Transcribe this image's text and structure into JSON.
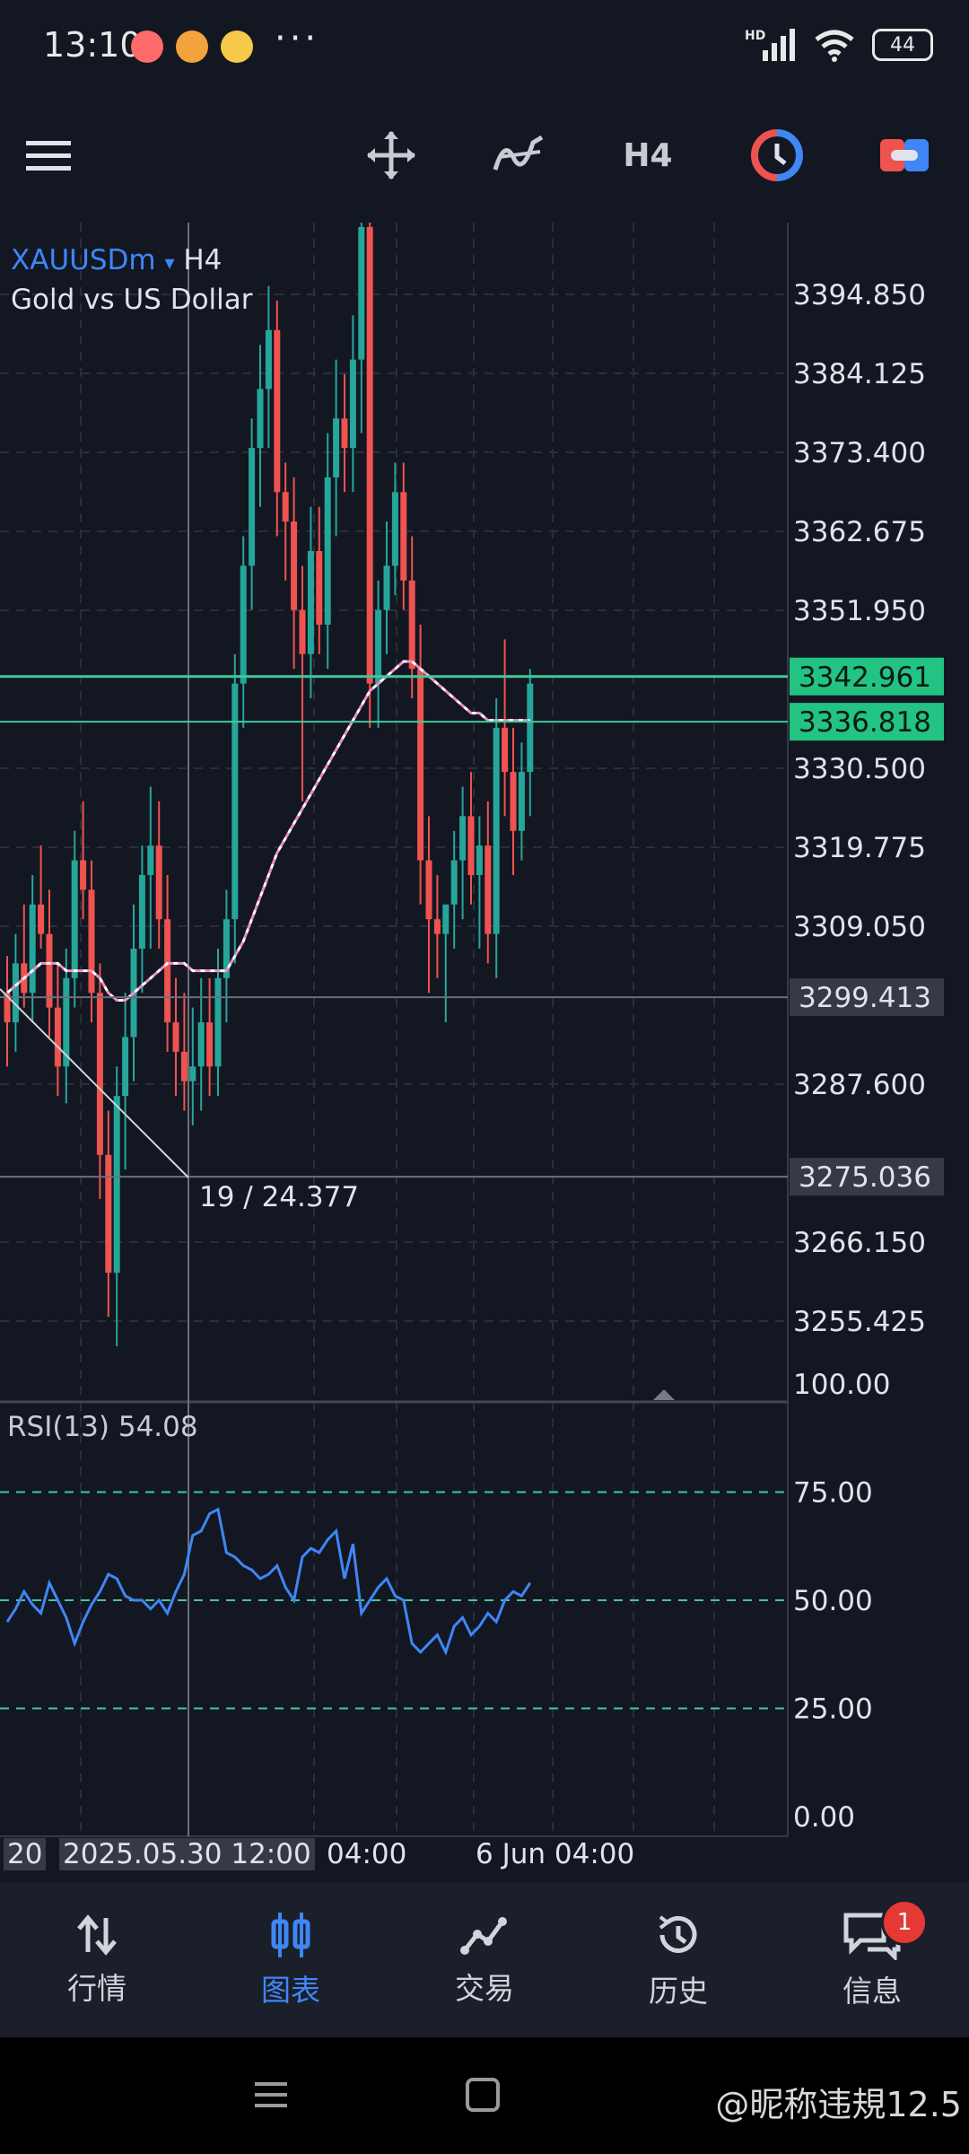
{
  "status_bar": {
    "time": "13:10",
    "more": "···",
    "hd": "HD",
    "battery": "44",
    "notification_icons": [
      "music-app-icon",
      "shopping-app-icon",
      "weibo-app-icon"
    ]
  },
  "toolbar": {
    "menu_icon": "hamburger-icon",
    "crosshair_icon": "move-crosshair-icon",
    "indicators_icon": "indicators-icon",
    "timeframe": "H4",
    "trade_icon": "one-click-trade-icon",
    "account_icon": "account-toggle-icon"
  },
  "chart": {
    "symbol": "XAUUSDm",
    "symbol_dropdown": "▾",
    "timeframe": "H4",
    "description": "Gold vs US Dollar",
    "measure_text": "19 / 24.377",
    "colors": {
      "background": "#131722",
      "up": "#26a69a",
      "down": "#ef5350",
      "ma": "#ffffff",
      "rsi": "#3f86f6",
      "level_line": "#3fc99a"
    }
  },
  "chart_data": {
    "type": "candlestick",
    "symbol": "XAUUSDm",
    "timeframe": "H4",
    "y_ticks": [
      3394.85,
      3384.125,
      3373.4,
      3362.675,
      3351.95,
      3330.5,
      3319.775,
      3309.05,
      3287.6,
      3266.15,
      3255.425
    ],
    "price_tags": {
      "current_bid": 3342.961,
      "level_2": 3336.818,
      "crosshair": 3299.413,
      "measure_line": 3275.036
    },
    "x_tick_labels": [
      "20",
      "2025.05.30 12:00",
      "04:00",
      "6 Jun 04:00"
    ],
    "candles_ohlc": [
      [
        3300,
        3305,
        3290,
        3296
      ],
      [
        3296,
        3308,
        3292,
        3304
      ],
      [
        3304,
        3312,
        3298,
        3300
      ],
      [
        3300,
        3316,
        3296,
        3312
      ],
      [
        3312,
        3320,
        3306,
        3308
      ],
      [
        3308,
        3314,
        3294,
        3298
      ],
      [
        3298,
        3304,
        3286,
        3290
      ],
      [
        3290,
        3306,
        3285,
        3302
      ],
      [
        3302,
        3322,
        3298,
        3318
      ],
      [
        3318,
        3326,
        3310,
        3314
      ],
      [
        3314,
        3318,
        3296,
        3300
      ],
      [
        3300,
        3304,
        3272,
        3278
      ],
      [
        3278,
        3284,
        3256,
        3262
      ],
      [
        3262,
        3290,
        3252,
        3286
      ],
      [
        3286,
        3300,
        3276,
        3294
      ],
      [
        3294,
        3312,
        3288,
        3306
      ],
      [
        3306,
        3320,
        3300,
        3316
      ],
      [
        3316,
        3328,
        3306,
        3320
      ],
      [
        3320,
        3326,
        3306,
        3310
      ],
      [
        3310,
        3316,
        3292,
        3296
      ],
      [
        3296,
        3302,
        3286,
        3292
      ],
      [
        3292,
        3300,
        3284,
        3288
      ],
      [
        3288,
        3298,
        3282,
        3290
      ],
      [
        3290,
        3302,
        3284,
        3296
      ],
      [
        3296,
        3302,
        3286,
        3290
      ],
      [
        3290,
        3306,
        3286,
        3302
      ],
      [
        3302,
        3314,
        3296,
        3310
      ],
      [
        3310,
        3346,
        3304,
        3342
      ],
      [
        3342,
        3362,
        3336,
        3358
      ],
      [
        3358,
        3378,
        3352,
        3374
      ],
      [
        3374,
        3388,
        3366,
        3382
      ],
      [
        3382,
        3396,
        3374,
        3390
      ],
      [
        3390,
        3394,
        3362,
        3368
      ],
      [
        3368,
        3372,
        3356,
        3364
      ],
      [
        3364,
        3370,
        3344,
        3352
      ],
      [
        3352,
        3358,
        3326,
        3346
      ],
      [
        3346,
        3366,
        3340,
        3360
      ],
      [
        3360,
        3366,
        3346,
        3350
      ],
      [
        3350,
        3376,
        3344,
        3370
      ],
      [
        3370,
        3386,
        3362,
        3378
      ],
      [
        3378,
        3384,
        3368,
        3374
      ],
      [
        3374,
        3392,
        3368,
        3386
      ],
      [
        3386,
        3408,
        3376,
        3404
      ],
      [
        3404,
        3410,
        3336,
        3342
      ],
      [
        3342,
        3356,
        3336,
        3352
      ],
      [
        3352,
        3364,
        3346,
        3358
      ],
      [
        3358,
        3372,
        3354,
        3368
      ],
      [
        3368,
        3372,
        3352,
        3356
      ],
      [
        3356,
        3362,
        3340,
        3344
      ],
      [
        3344,
        3350,
        3312,
        3318
      ],
      [
        3318,
        3324,
        3300,
        3310
      ],
      [
        3310,
        3316,
        3302,
        3308
      ],
      [
        3308,
        3312,
        3296,
        3312
      ],
      [
        3312,
        3322,
        3306,
        3318
      ],
      [
        3318,
        3328,
        3310,
        3324
      ],
      [
        3324,
        3330,
        3312,
        3316
      ],
      [
        3316,
        3324,
        3306,
        3320
      ],
      [
        3320,
        3326,
        3304,
        3308
      ],
      [
        3308,
        3340,
        3302,
        3336
      ],
      [
        3336,
        3348,
        3324,
        3330
      ],
      [
        3330,
        3336,
        3316,
        3322
      ],
      [
        3322,
        3334,
        3318,
        3330
      ],
      [
        3330,
        3344,
        3324,
        3342
      ]
    ],
    "moving_average": [
      3300,
      3301,
      3302,
      3303,
      3304,
      3304,
      3304,
      3303,
      3303,
      3303,
      3303,
      3302,
      3300,
      3299,
      3299,
      3300,
      3301,
      3302,
      3303,
      3304,
      3304,
      3304,
      3303,
      3303,
      3303,
      3303,
      3303,
      3305,
      3307,
      3310,
      3313,
      3316,
      3319,
      3321,
      3323,
      3325,
      3327,
      3329,
      3331,
      3333,
      3335,
      3337,
      3339,
      3341,
      3342,
      3343,
      3344,
      3345,
      3345,
      3344,
      3343,
      3342,
      3341,
      3340,
      3339,
      3338,
      3338,
      3337,
      3337,
      3337,
      3337,
      3337,
      3337
    ],
    "rsi": {
      "period": 13,
      "label": "RSI(13)",
      "current": 54.08,
      "y_ticks": [
        100.0,
        75.0,
        50.0,
        25.0,
        0.0
      ],
      "levels": [
        75,
        50,
        25
      ],
      "values": [
        45,
        48,
        52,
        49,
        47,
        54,
        50,
        46,
        40,
        45,
        49,
        52,
        56,
        55,
        51,
        50,
        50,
        48,
        50,
        47,
        52,
        56,
        65,
        66,
        70,
        71,
        61,
        60,
        58,
        57,
        55,
        56,
        58,
        53,
        50,
        60,
        62,
        61,
        64,
        66,
        55,
        63,
        47,
        50,
        53,
        55,
        51,
        50,
        40,
        38,
        40,
        42,
        38,
        44,
        46,
        42,
        44,
        47,
        45,
        50,
        52,
        51,
        54
      ]
    }
  },
  "axis_labels": {
    "y": [
      "3394.850",
      "3384.125",
      "3373.400",
      "3362.675",
      "3351.950",
      "3330.500",
      "3319.775",
      "3309.050",
      "3287.600",
      "3266.150",
      "3255.425"
    ],
    "tags": {
      "current": "3342.961",
      "level2": "3336.818",
      "crosshair": "3299.413",
      "measure": "3275.036"
    },
    "rsi": [
      "100.00",
      "75.00",
      "50.00",
      "25.00",
      "0.00"
    ],
    "time": {
      "t0": "20",
      "t1": "2025.05.30 12:00",
      "t2": "04:00",
      "t3": "6 Jun 04:00"
    }
  },
  "bottom_nav": {
    "quotes": {
      "icon": "quotes-arrows-icon",
      "label": "行情"
    },
    "chart": {
      "icon": "candles-chart-icon",
      "label": "图表"
    },
    "trade": {
      "icon": "trade-line-icon",
      "label": "交易"
    },
    "history": {
      "icon": "history-clock-icon",
      "label": "历史"
    },
    "messages": {
      "icon": "messages-chat-icon",
      "label": "信息",
      "badge": "1"
    }
  },
  "system_nav": {
    "recents": "recents-icon",
    "home": "home-icon"
  },
  "watermark": "@昵称违規12.5"
}
